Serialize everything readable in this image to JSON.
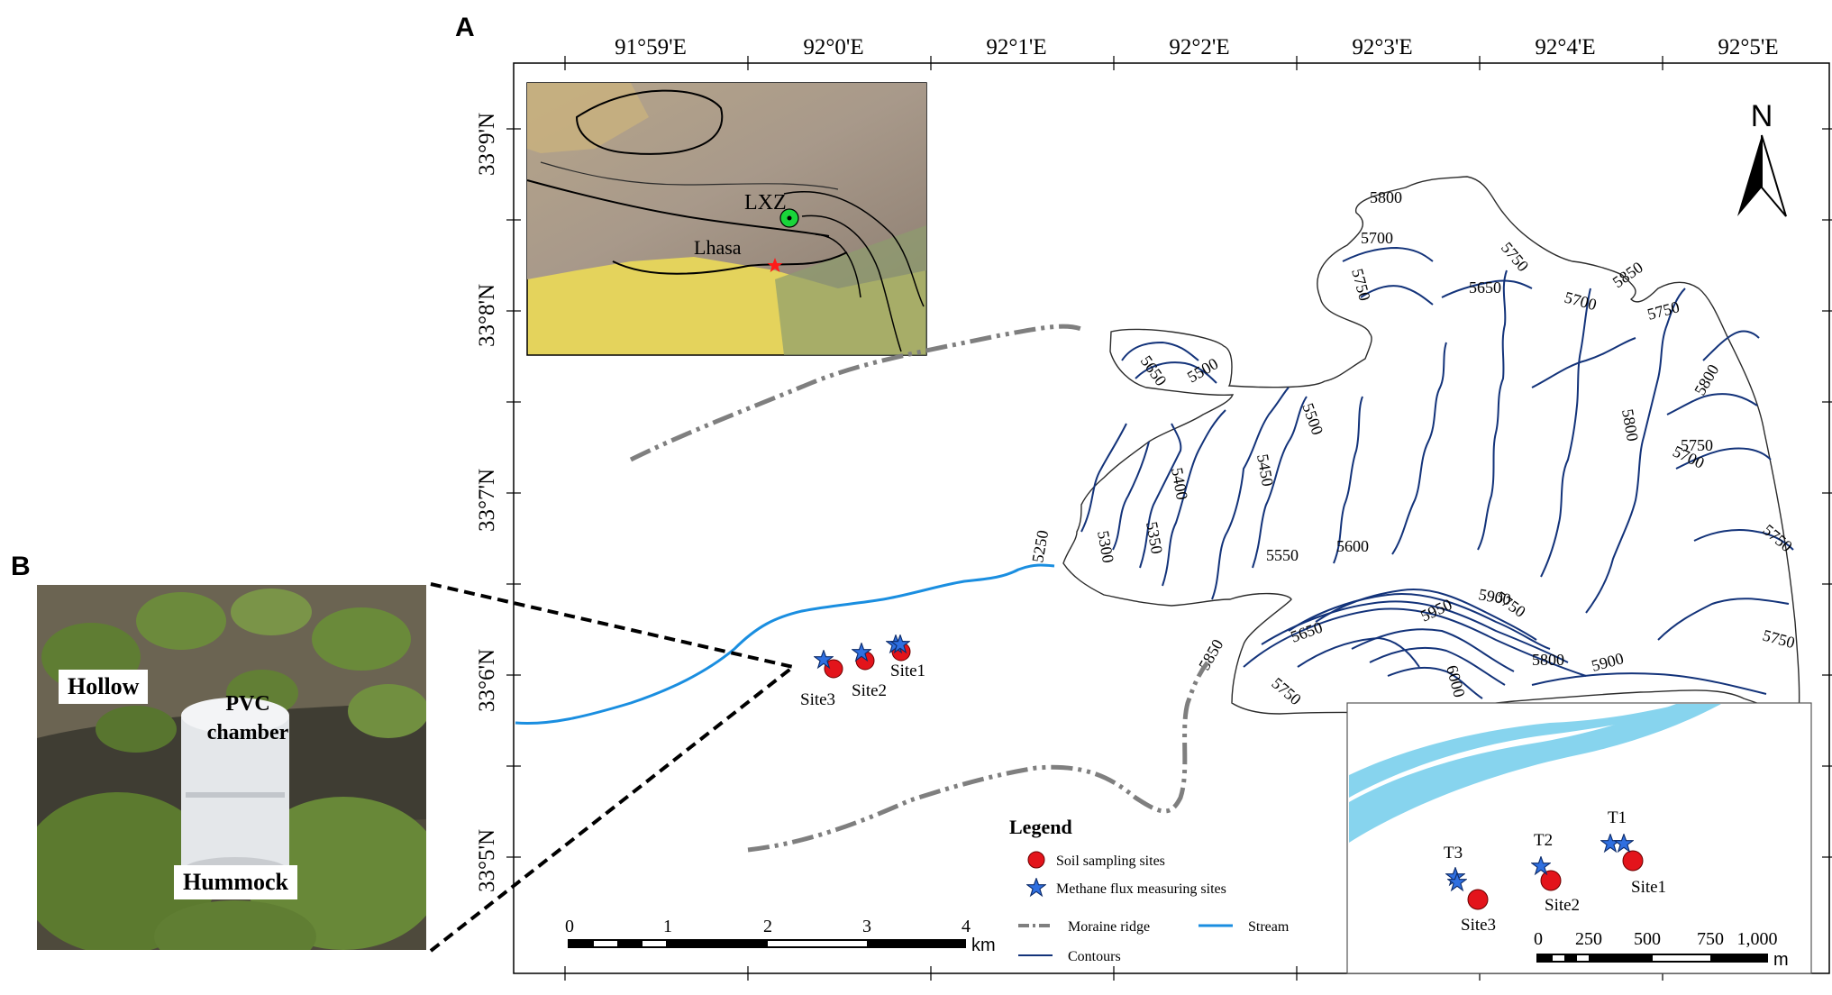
{
  "panels": {
    "a_label": "A",
    "b_label": "B"
  },
  "lon_ticks": [
    "91°59'E",
    "92°0'E",
    "92°1'E",
    "92°2'E",
    "92°3'E",
    "92°4'E",
    "92°5'E"
  ],
  "lat_ticks": [
    "33°9'N",
    "33°8'N",
    "33°7'N",
    "33°6'N",
    "33°5'N"
  ],
  "north_arrow": "N",
  "inset_map": {
    "lxz_label": "LXZ",
    "lhasa_label": "Lhasa"
  },
  "contour_labels": [
    "5800",
    "5700",
    "5750",
    "5650",
    "5750",
    "5700",
    "5850",
    "5750",
    "5650",
    "5500",
    "5500",
    "5450",
    "5400",
    "5350",
    "5300",
    "5250",
    "5550",
    "5600",
    "5750",
    "5800",
    "5700",
    "5750",
    "5800",
    "5750",
    "5900",
    "5950",
    "6000",
    "5800",
    "5900",
    "5650",
    "5750",
    "5850",
    "5750"
  ],
  "site_labels": {
    "site1": "Site1",
    "site2": "Site2",
    "site3": "Site3"
  },
  "legend": {
    "title": "Legend",
    "soil": "Soil sampling sites",
    "methane": "Methane flux measuring sites",
    "moraine": "Moraine ridge",
    "stream": "Stream",
    "contours": "Contours"
  },
  "scale_main": {
    "labels": [
      "0",
      "1",
      "2",
      "3",
      "4"
    ],
    "unit": "km"
  },
  "detail_inset": {
    "t1": "T1",
    "t2": "T2",
    "t3": "T3",
    "site1": "Site1",
    "site2": "Site2",
    "site3": "Site3",
    "scale_labels": [
      "0",
      "250",
      "500",
      "750",
      "1,000"
    ],
    "scale_unit": "m"
  },
  "photo": {
    "hollow": "Hollow",
    "pvc": "PVC chamber",
    "hummock": "Hummock"
  },
  "colors": {
    "stream": "#1a8ee0",
    "contour": "#13337a",
    "moraine": "#7f7f7f",
    "site": "#e3141b",
    "star": "#2f6fe0",
    "inset_stream": "#87d4ee"
  }
}
